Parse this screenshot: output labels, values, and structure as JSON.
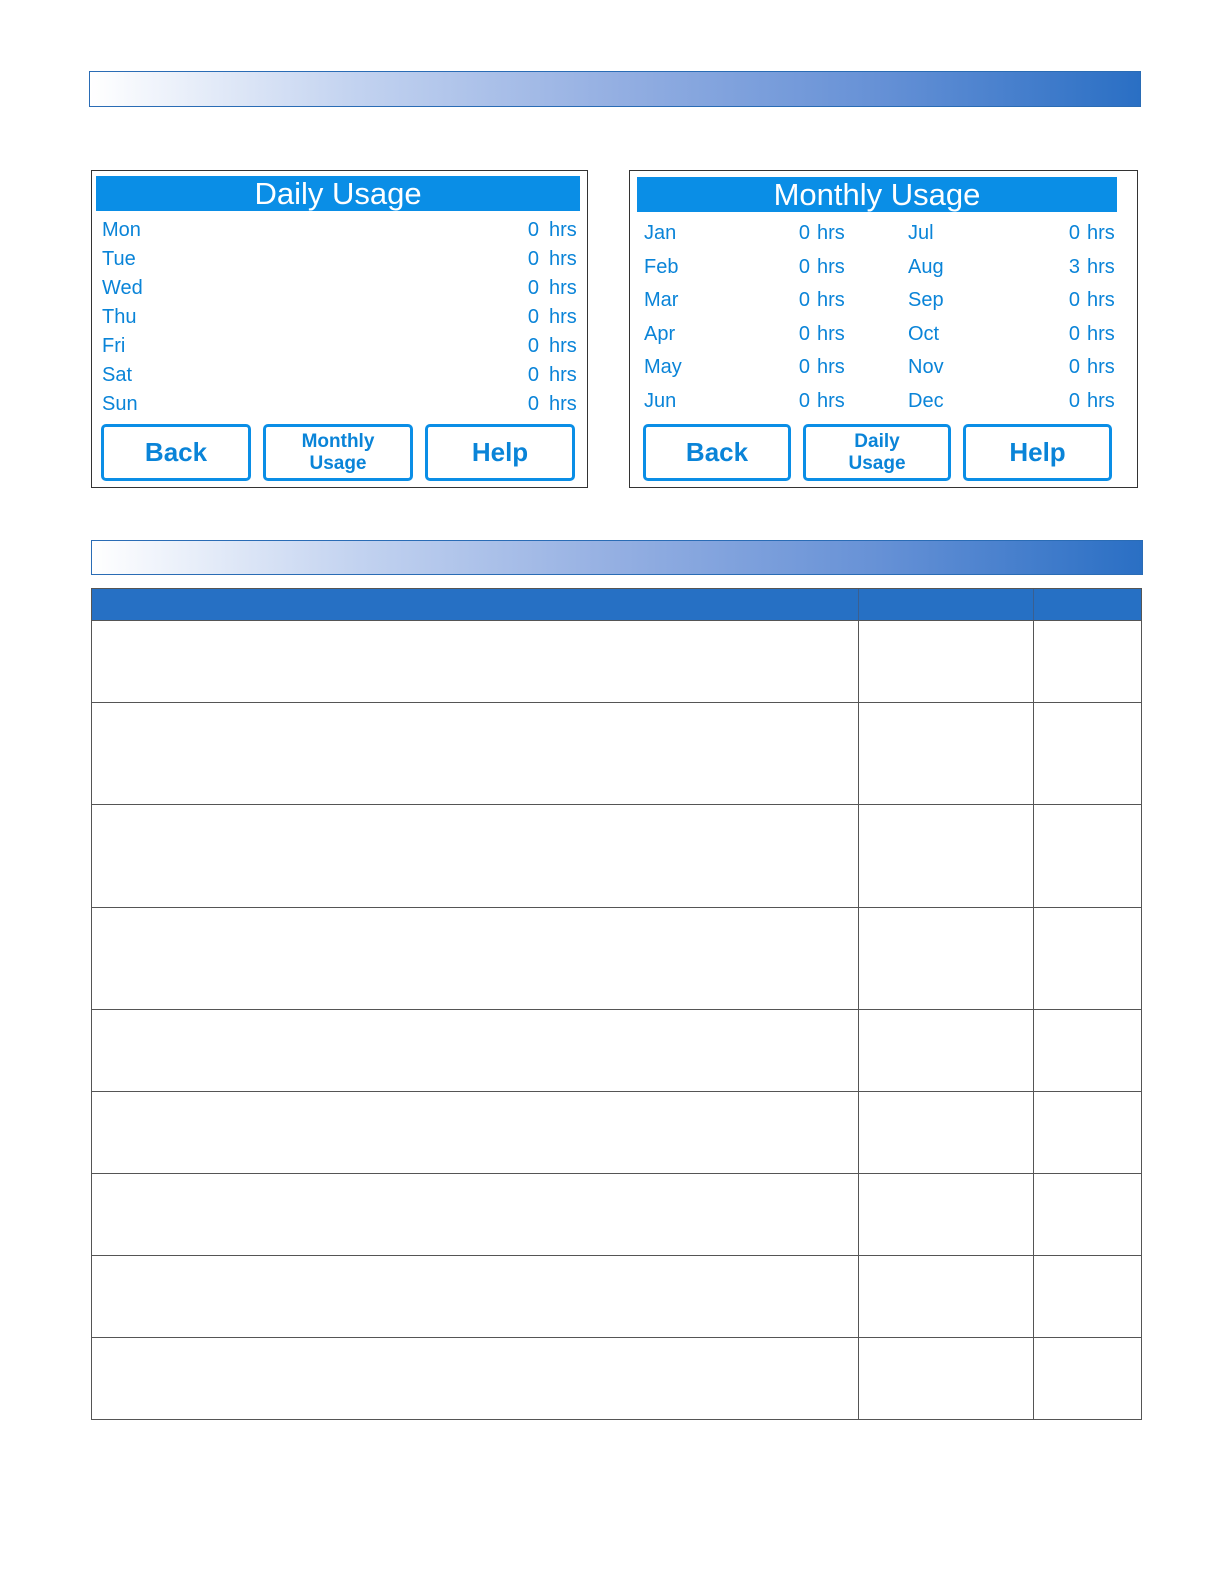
{
  "daily": {
    "title": "Daily Usage",
    "unit": "hrs",
    "rows": [
      {
        "day": "Mon",
        "value": "0"
      },
      {
        "day": "Tue",
        "value": "0"
      },
      {
        "day": "Wed",
        "value": "0"
      },
      {
        "day": "Thu",
        "value": "0"
      },
      {
        "day": "Fri",
        "value": "0"
      },
      {
        "day": "Sat",
        "value": "0"
      },
      {
        "day": "Sun",
        "value": "0"
      }
    ],
    "buttons": {
      "back": "Back",
      "monthly_1": "Monthly",
      "monthly_2": "Usage",
      "help": "Help"
    }
  },
  "monthly": {
    "title": "Monthly Usage",
    "unit": "hrs",
    "rows": [
      {
        "month": "Jan",
        "value": "0"
      },
      {
        "month": "Feb",
        "value": "0"
      },
      {
        "month": "Mar",
        "value": "0"
      },
      {
        "month": "Apr",
        "value": "0"
      },
      {
        "month": "May",
        "value": "0"
      },
      {
        "month": "Jun",
        "value": "0"
      },
      {
        "month": "Jul",
        "value": "0"
      },
      {
        "month": "Aug",
        "value": "3"
      },
      {
        "month": "Sep",
        "value": "0"
      },
      {
        "month": "Oct",
        "value": "0"
      },
      {
        "month": "Nov",
        "value": "0"
      },
      {
        "month": "Dec",
        "value": "0"
      }
    ],
    "buttons": {
      "back": "Back",
      "daily_1": "Daily",
      "daily_2": "Usage",
      "help": "Help"
    }
  },
  "colors": {
    "screen_blue": "#0a8ee6",
    "table_header": "#2670c4"
  },
  "table": {
    "row_count": 9
  }
}
